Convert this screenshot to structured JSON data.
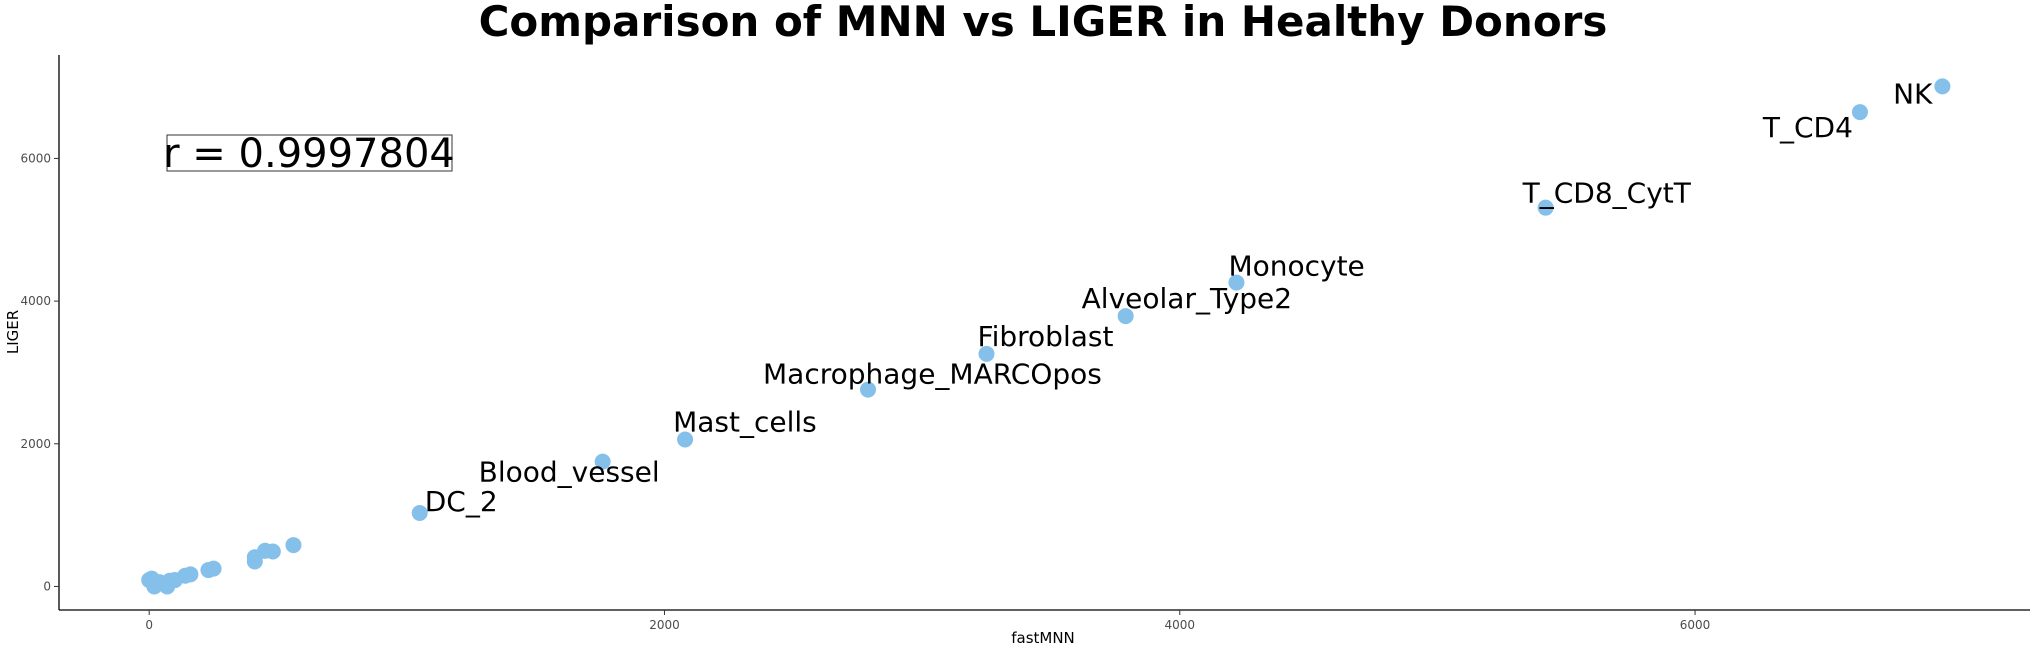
{
  "chart_data": {
    "type": "scatter",
    "title": "Comparison of MNN vs LIGER in Healthy Donors",
    "xlabel": "fastMNN",
    "ylabel": "LIGER",
    "xlim": [
      -350,
      7300
    ],
    "ylim": [
      -330,
      7450
    ],
    "xticks": [
      0,
      2000,
      4000,
      6000
    ],
    "yticks": [
      0,
      2000,
      4000,
      6000
    ],
    "grid": false,
    "point_color": "#85c0ea",
    "annotation": "r = 0.9997804",
    "points": [
      {
        "x": 6960,
        "y": 7010,
        "label": "NK"
      },
      {
        "x": 6640,
        "y": 6650,
        "label": "T_CD4"
      },
      {
        "x": 5420,
        "y": 5310,
        "label": "T_CD8_CytT"
      },
      {
        "x": 4220,
        "y": 4260,
        "label": "Monocyte"
      },
      {
        "x": 3790,
        "y": 3790,
        "label": "Alveolar_Type2"
      },
      {
        "x": 3250,
        "y": 3260,
        "label": "Fibroblast"
      },
      {
        "x": 2790,
        "y": 2760,
        "label": "Macrophage_MARCOpos"
      },
      {
        "x": 2080,
        "y": 2060,
        "label": "Mast_cells"
      },
      {
        "x": 1760,
        "y": 1750,
        "label": "Blood_vessel"
      },
      {
        "x": 1050,
        "y": 1030,
        "label": "DC_2"
      },
      {
        "x": 560,
        "y": 580,
        "label": ""
      },
      {
        "x": 480,
        "y": 490,
        "label": ""
      },
      {
        "x": 450,
        "y": 500,
        "label": ""
      },
      {
        "x": 410,
        "y": 410,
        "label": ""
      },
      {
        "x": 410,
        "y": 350,
        "label": ""
      },
      {
        "x": 250,
        "y": 250,
        "label": ""
      },
      {
        "x": 230,
        "y": 230,
        "label": ""
      },
      {
        "x": 160,
        "y": 170,
        "label": ""
      },
      {
        "x": 140,
        "y": 150,
        "label": ""
      },
      {
        "x": 100,
        "y": 90,
        "label": ""
      },
      {
        "x": 80,
        "y": 80,
        "label": ""
      },
      {
        "x": 60,
        "y": 30,
        "label": ""
      },
      {
        "x": 40,
        "y": 60,
        "label": ""
      },
      {
        "x": 20,
        "y": 0,
        "label": ""
      },
      {
        "x": 10,
        "y": 110,
        "label": ""
      },
      {
        "x": 0,
        "y": 90,
        "label": ""
      },
      {
        "x": 70,
        "y": 0,
        "label": ""
      }
    ]
  }
}
